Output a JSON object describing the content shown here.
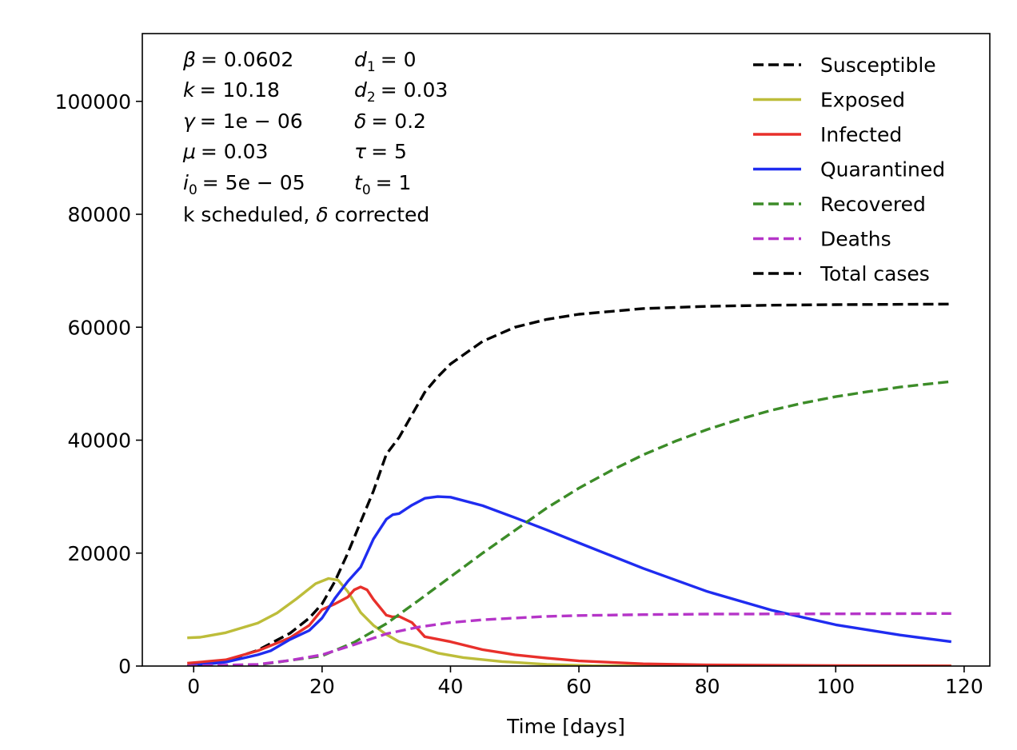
{
  "chart_data": {
    "type": "line",
    "xlabel": "Time [days]",
    "ylabel": "",
    "xlim": [
      -8,
      124
    ],
    "ylim": [
      0,
      112000
    ],
    "xticks": [
      0,
      20,
      40,
      60,
      80,
      100,
      120
    ],
    "yticks": [
      0,
      20000,
      40000,
      60000,
      80000,
      100000
    ],
    "grid": false,
    "legend_position": "top-right",
    "series": [
      {
        "name": "Susceptible",
        "color": "#000000",
        "dash": true,
        "points": [
          [
            -1,
            0
          ],
          [
            5,
            900
          ],
          [
            10,
            2800
          ],
          [
            15,
            5800
          ],
          [
            18,
            8500
          ],
          [
            20,
            11000
          ],
          [
            22,
            15000
          ],
          [
            24,
            20000
          ],
          [
            26,
            25500
          ],
          [
            28,
            31000
          ],
          [
            30,
            37500
          ],
          [
            32,
            40500
          ],
          [
            34,
            44500
          ],
          [
            36,
            48500
          ],
          [
            38,
            51200
          ],
          [
            40,
            53500
          ],
          [
            45,
            57500
          ],
          [
            50,
            60000
          ],
          [
            55,
            61400
          ],
          [
            60,
            62300
          ],
          [
            70,
            63300
          ],
          [
            80,
            63700
          ],
          [
            90,
            63900
          ],
          [
            100,
            64000
          ],
          [
            118,
            64100
          ]
        ]
      },
      {
        "name": "Exposed",
        "color": "#BDBD3A",
        "dash": false,
        "points": [
          [
            -1,
            5000
          ],
          [
            1,
            5100
          ],
          [
            5,
            5900
          ],
          [
            10,
            7600
          ],
          [
            13,
            9400
          ],
          [
            16,
            11900
          ],
          [
            19,
            14600
          ],
          [
            21,
            15500
          ],
          [
            22.5,
            15200
          ],
          [
            24,
            13200
          ],
          [
            26,
            9500
          ],
          [
            28,
            7200
          ],
          [
            30,
            5600
          ],
          [
            32,
            4300
          ],
          [
            35,
            3400
          ],
          [
            38,
            2300
          ],
          [
            42,
            1500
          ],
          [
            48,
            800
          ],
          [
            55,
            300
          ],
          [
            62,
            50
          ],
          [
            70,
            0
          ],
          [
            118,
            0
          ]
        ]
      },
      {
        "name": "Infected",
        "color": "#E8302B",
        "dash": false,
        "points": [
          [
            -1,
            500
          ],
          [
            5,
            1100
          ],
          [
            10,
            2700
          ],
          [
            15,
            5000
          ],
          [
            18,
            7200
          ],
          [
            20,
            10000
          ],
          [
            22,
            11000
          ],
          [
            24,
            12200
          ],
          [
            25,
            13500
          ],
          [
            26,
            14000
          ],
          [
            27,
            13500
          ],
          [
            28,
            11800
          ],
          [
            30,
            9000
          ],
          [
            31,
            8700
          ],
          [
            32,
            8800
          ],
          [
            34,
            7700
          ],
          [
            36,
            5200
          ],
          [
            40,
            4300
          ],
          [
            45,
            2900
          ],
          [
            50,
            2000
          ],
          [
            55,
            1400
          ],
          [
            60,
            900
          ],
          [
            70,
            400
          ],
          [
            80,
            200
          ],
          [
            100,
            70
          ],
          [
            118,
            30
          ]
        ]
      },
      {
        "name": "Quarantined",
        "color": "#1F2CF0",
        "dash": false,
        "points": [
          [
            -1,
            0
          ],
          [
            5,
            700
          ],
          [
            10,
            2000
          ],
          [
            12,
            2700
          ],
          [
            15,
            4700
          ],
          [
            18,
            6300
          ],
          [
            20,
            8500
          ],
          [
            22,
            12000
          ],
          [
            24,
            15000
          ],
          [
            26,
            17500
          ],
          [
            28,
            22500
          ],
          [
            30,
            26000
          ],
          [
            31,
            26800
          ],
          [
            32,
            27000
          ],
          [
            34,
            28500
          ],
          [
            36,
            29700
          ],
          [
            38,
            30000
          ],
          [
            40,
            29900
          ],
          [
            45,
            28400
          ],
          [
            50,
            26300
          ],
          [
            55,
            24100
          ],
          [
            60,
            21800
          ],
          [
            70,
            17300
          ],
          [
            80,
            13200
          ],
          [
            90,
            9900
          ],
          [
            100,
            7300
          ],
          [
            110,
            5500
          ],
          [
            118,
            4300
          ]
        ]
      },
      {
        "name": "Recovered",
        "color": "#3C8C28",
        "dash": true,
        "points": [
          [
            -1,
            0
          ],
          [
            10,
            200
          ],
          [
            20,
            1800
          ],
          [
            25,
            4200
          ],
          [
            30,
            7500
          ],
          [
            35,
            11600
          ],
          [
            40,
            15800
          ],
          [
            45,
            20000
          ],
          [
            50,
            24000
          ],
          [
            55,
            28000
          ],
          [
            60,
            31500
          ],
          [
            65,
            34600
          ],
          [
            70,
            37400
          ],
          [
            75,
            39800
          ],
          [
            80,
            41900
          ],
          [
            85,
            43700
          ],
          [
            90,
            45300
          ],
          [
            95,
            46600
          ],
          [
            100,
            47700
          ],
          [
            105,
            48600
          ],
          [
            110,
            49400
          ],
          [
            118,
            50400
          ]
        ]
      },
      {
        "name": "Deaths",
        "color": "#B535C8",
        "dash": true,
        "points": [
          [
            -1,
            0
          ],
          [
            10,
            300
          ],
          [
            15,
            1000
          ],
          [
            20,
            2000
          ],
          [
            25,
            3800
          ],
          [
            30,
            5700
          ],
          [
            35,
            6900
          ],
          [
            40,
            7700
          ],
          [
            45,
            8200
          ],
          [
            50,
            8500
          ],
          [
            55,
            8800
          ],
          [
            60,
            8950
          ],
          [
            70,
            9100
          ],
          [
            80,
            9200
          ],
          [
            100,
            9250
          ],
          [
            118,
            9300
          ]
        ]
      },
      {
        "name": "Total cases",
        "color": "#000000",
        "dash": true,
        "points": []
      }
    ]
  },
  "params": {
    "beta": {
      "sym": "β",
      "sub": "",
      "val": "= 0.0602"
    },
    "k": {
      "sym": "k",
      "sub": "",
      "val": "= 10.18"
    },
    "gamma": {
      "sym": "γ",
      "sub": "",
      "val": "= 1e − 06"
    },
    "mu": {
      "sym": "μ",
      "sub": "",
      "val": "= 0.03"
    },
    "i0": {
      "sym": "i",
      "sub": "0",
      "val": "= 5e − 05"
    },
    "d1": {
      "sym": "d",
      "sub": "1",
      "val": "= 0"
    },
    "d2": {
      "sym": "d",
      "sub": "2",
      "val": "= 0.03"
    },
    "delta": {
      "sym": "δ",
      "sub": "",
      "val": "= 0.2"
    },
    "tau": {
      "sym": "τ",
      "sub": "",
      "val": "= 5"
    },
    "t0": {
      "sym": "t",
      "sub": "0",
      "val": "= 1"
    },
    "note": {
      "pre": "k scheduled, ",
      "sym": "δ",
      "post": " corrected"
    }
  }
}
